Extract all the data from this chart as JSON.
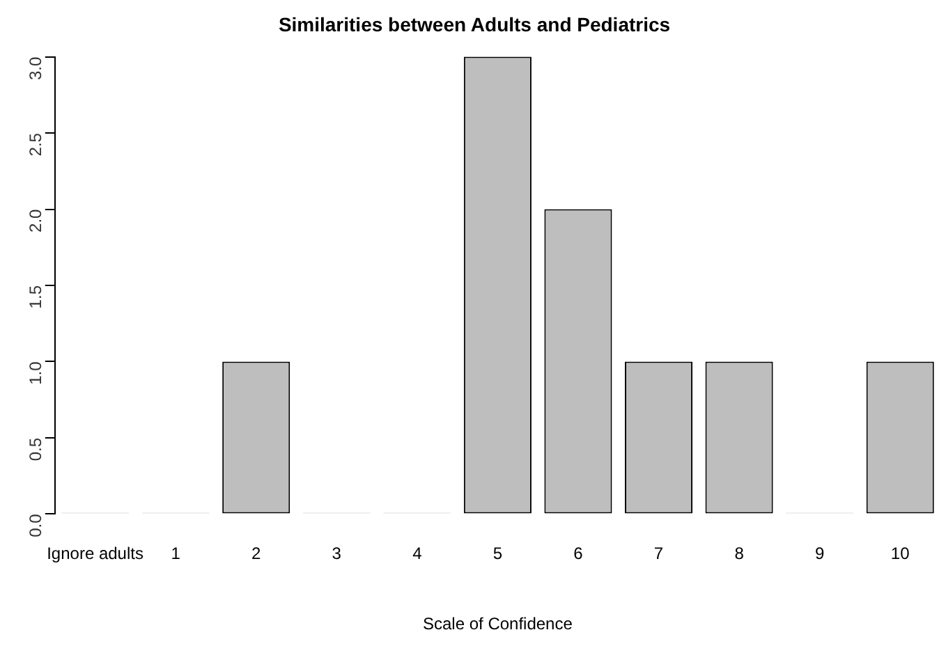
{
  "chart_data": {
    "type": "bar",
    "title": "Similarities between Adults and Pediatrics",
    "xlabel": "Scale of Confidence",
    "categories": [
      "Ignore adults",
      "1",
      "2",
      "3",
      "4",
      "5",
      "6",
      "7",
      "8",
      "9",
      "10"
    ],
    "values": [
      0,
      0,
      1,
      0,
      0,
      3,
      2,
      1,
      1,
      0,
      1
    ],
    "color": "#bebebe",
    "ylim": [
      0,
      3
    ],
    "yticks": [
      {
        "value": 0,
        "label": "0.0"
      },
      {
        "value": 0.5,
        "label": "0.5"
      },
      {
        "value": 1,
        "label": "1.0"
      },
      {
        "value": 1.5,
        "label": "1.5"
      },
      {
        "value": 2,
        "label": "2.0"
      },
      {
        "value": 2.5,
        "label": "2.5"
      },
      {
        "value": 3,
        "label": "3.0"
      }
    ],
    "grid": false,
    "legend": false
  }
}
